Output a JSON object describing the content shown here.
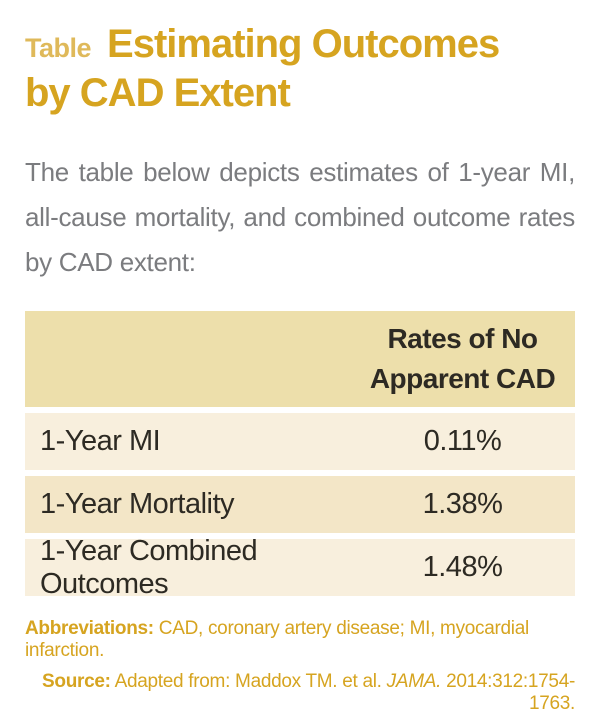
{
  "colors": {
    "gold": "#D6A420",
    "gold_light": "#DFB95A",
    "header_bg": "#EDDFAB",
    "row_bg_light": "#F8EFDD",
    "row_bg_dark": "#F3E6C7",
    "text_dark": "#2D2A23",
    "text_gray": "#7B7C7F"
  },
  "header": {
    "kicker": "Table",
    "title_line1": "Estimating Outcomes",
    "title_line2": "by CAD Extent"
  },
  "intro": "The table below depicts estimates of 1-year MI, all-cause mortality, and combined outcome rates by CAD extent:",
  "table": {
    "column_headers": [
      "",
      "Rates of No Apparent CAD"
    ],
    "rows": [
      {
        "label": "1-Year MI",
        "value": "0.11%"
      },
      {
        "label": "1-Year Mortality",
        "value": "1.38%"
      },
      {
        "label": "1-Year Combined Outcomes",
        "value": "1.48%"
      }
    ]
  },
  "footnotes": {
    "abbreviations_label": "Abbreviations:",
    "abbreviations_text": " CAD, coronary artery disease; MI, myocardial infarction.",
    "source_label": "Source:",
    "source_prefix": " Adapted from: Maddox TM. et al. ",
    "source_journal": "JAMA.",
    "source_suffix": " 2014:312:1754-1763."
  }
}
